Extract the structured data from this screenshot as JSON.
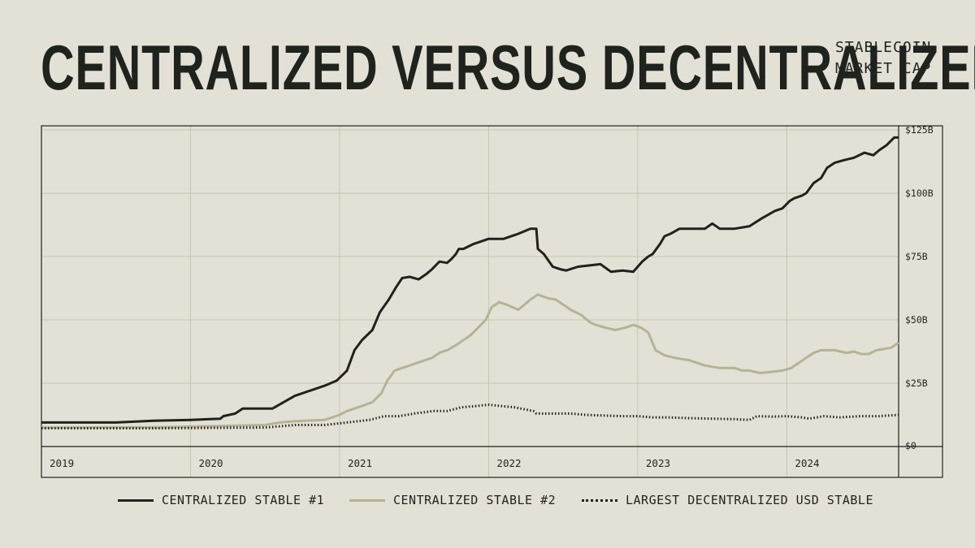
{
  "header": {
    "title": "CENTRALIZED VERSUS DECENTRALIZED",
    "subtitle_line1": "STABLECOIN",
    "subtitle_line2": "MARKET CAP"
  },
  "colors": {
    "background": "#e3e1d6",
    "ink": "#1f231e",
    "grid": "#c6c6ad",
    "series1": "#1f231e",
    "series2": "#b5b394",
    "series3": "#1f231e"
  },
  "chart_data": {
    "type": "line",
    "title": "CENTRALIZED VERSUS DECENTRALIZED",
    "subtitle": "STABLECOIN MARKET CAP",
    "x_ticks": [
      "2019",
      "2020",
      "2021",
      "2022",
      "2023",
      "2024"
    ],
    "x_range": [
      2019.0,
      2024.75
    ],
    "y_ticks": [
      "$0",
      "$25B",
      "$50B",
      "$75B",
      "$100B",
      "$125B"
    ],
    "y_ticks_values": [
      0,
      25,
      50,
      75,
      100,
      125
    ],
    "ylim": [
      0,
      125
    ],
    "grid": true,
    "legend_placement": "bottom",
    "series": [
      {
        "name": "CENTRALIZED STABLE #1",
        "style": "solid",
        "x": [
          2019.0,
          2019.5,
          2019.75,
          2020.0,
          2020.2,
          2020.22,
          2020.3,
          2020.35,
          2020.55,
          2020.7,
          2020.9,
          2020.98,
          2021.05,
          2021.1,
          2021.15,
          2021.22,
          2021.27,
          2021.33,
          2021.38,
          2021.42,
          2021.47,
          2021.53,
          2021.58,
          2021.62,
          2021.67,
          2021.72,
          2021.75,
          2021.78,
          2021.8,
          2021.83,
          2021.9,
          2021.95,
          2022.0,
          2022.1,
          2022.2,
          2022.28,
          2022.32,
          2022.33,
          2022.37,
          2022.43,
          2022.48,
          2022.52,
          2022.6,
          2022.75,
          2022.82,
          2022.9,
          2022.97,
          2023.03,
          2023.07,
          2023.1,
          2023.15,
          2023.18,
          2023.22,
          2023.28,
          2023.35,
          2023.45,
          2023.5,
          2023.55,
          2023.65,
          2023.75,
          2023.83,
          2023.92,
          2023.97,
          2024.02,
          2024.05,
          2024.1,
          2024.13,
          2024.18,
          2024.23,
          2024.27,
          2024.32,
          2024.38,
          2024.45,
          2024.52,
          2024.58,
          2024.62,
          2024.67,
          2024.72,
          2024.75
        ],
        "values": [
          9.5,
          9.5,
          10.2,
          10.5,
          11,
          12,
          13,
          15,
          15,
          20,
          24,
          26,
          30,
          38,
          42,
          46,
          53,
          58,
          63,
          66.5,
          67,
          66,
          68,
          70,
          73,
          72.5,
          74,
          76,
          78,
          78,
          80,
          81,
          82,
          82,
          84,
          86,
          86,
          78,
          76,
          71,
          70,
          69.5,
          71,
          72,
          69,
          69.5,
          69,
          73,
          75,
          76,
          80,
          83,
          84,
          86,
          86,
          86,
          88,
          86,
          86,
          87,
          90,
          93,
          94,
          97,
          98,
          99,
          100,
          104,
          106,
          110,
          112,
          113,
          114,
          116,
          115,
          117,
          119,
          122,
          122
        ]
      },
      {
        "name": "CENTRALIZED STABLE #2",
        "style": "solid",
        "x": [
          2019.0,
          2019.8,
          2020.5,
          2020.6,
          2020.7,
          2020.9,
          2021.0,
          2021.05,
          2021.15,
          2021.22,
          2021.28,
          2021.32,
          2021.37,
          2021.42,
          2021.47,
          2021.52,
          2021.57,
          2021.62,
          2021.67,
          2021.72,
          2021.78,
          2021.83,
          2021.88,
          2021.93,
          2021.98,
          2022.02,
          2022.07,
          2022.12,
          2022.2,
          2022.28,
          2022.33,
          2022.4,
          2022.45,
          2022.5,
          2022.55,
          2022.62,
          2022.68,
          2022.72,
          2022.78,
          2022.85,
          2022.92,
          2022.97,
          2023.02,
          2023.07,
          2023.12,
          2023.18,
          2023.25,
          2023.35,
          2023.45,
          2023.55,
          2023.65,
          2023.7,
          2023.75,
          2023.82,
          2023.9,
          2023.97,
          2024.03,
          2024.08,
          2024.13,
          2024.18,
          2024.23,
          2024.32,
          2024.4,
          2024.45,
          2024.5,
          2024.55,
          2024.6,
          2024.65,
          2024.7,
          2024.75
        ],
        "values": [
          7.5,
          7.6,
          8.5,
          9.5,
          10,
          10.5,
          12.5,
          14,
          16,
          17.5,
          21,
          26,
          30,
          31,
          32,
          33,
          34,
          35,
          37,
          38,
          40,
          42,
          44,
          47,
          50,
          55,
          57,
          56,
          54,
          58,
          60,
          58.5,
          58,
          56,
          54,
          52,
          49,
          48,
          47,
          46,
          47,
          48,
          47,
          45,
          38,
          36,
          35,
          34,
          32,
          31,
          31,
          30,
          30,
          29,
          29.5,
          30,
          31,
          33,
          35,
          37,
          38,
          38,
          37,
          37.5,
          36.5,
          36.5,
          38,
          38.5,
          39,
          41
        ]
      },
      {
        "name": "LARGEST DECENTRALIZED USD STABLE",
        "style": "dotted",
        "x": [
          2019.0,
          2019.8,
          2020.5,
          2020.7,
          2020.9,
          2021.05,
          2021.2,
          2021.3,
          2021.4,
          2021.5,
          2021.63,
          2021.72,
          2021.82,
          2021.92,
          2022.0,
          2022.08,
          2022.17,
          2022.3,
          2022.32,
          2022.45,
          2022.55,
          2022.65,
          2022.78,
          2022.9,
          2022.97,
          2023.0,
          2023.1,
          2023.2,
          2023.35,
          2023.5,
          2023.65,
          2023.75,
          2023.8,
          2023.9,
          2024.0,
          2024.1,
          2024.15,
          2024.25,
          2024.35,
          2024.5,
          2024.62,
          2024.75
        ],
        "values": [
          7.2,
          7.2,
          7.5,
          8.5,
          8.5,
          9.5,
          10.5,
          12,
          12,
          13,
          14,
          14,
          15.5,
          16,
          16.5,
          16,
          15.5,
          14,
          13,
          13,
          13,
          12.5,
          12.2,
          12,
          12,
          12,
          11.5,
          11.5,
          11.2,
          11,
          10.8,
          10.5,
          12,
          11.8,
          12,
          11.5,
          11,
          12,
          11.5,
          12,
          12,
          12.5
        ]
      }
    ]
  }
}
